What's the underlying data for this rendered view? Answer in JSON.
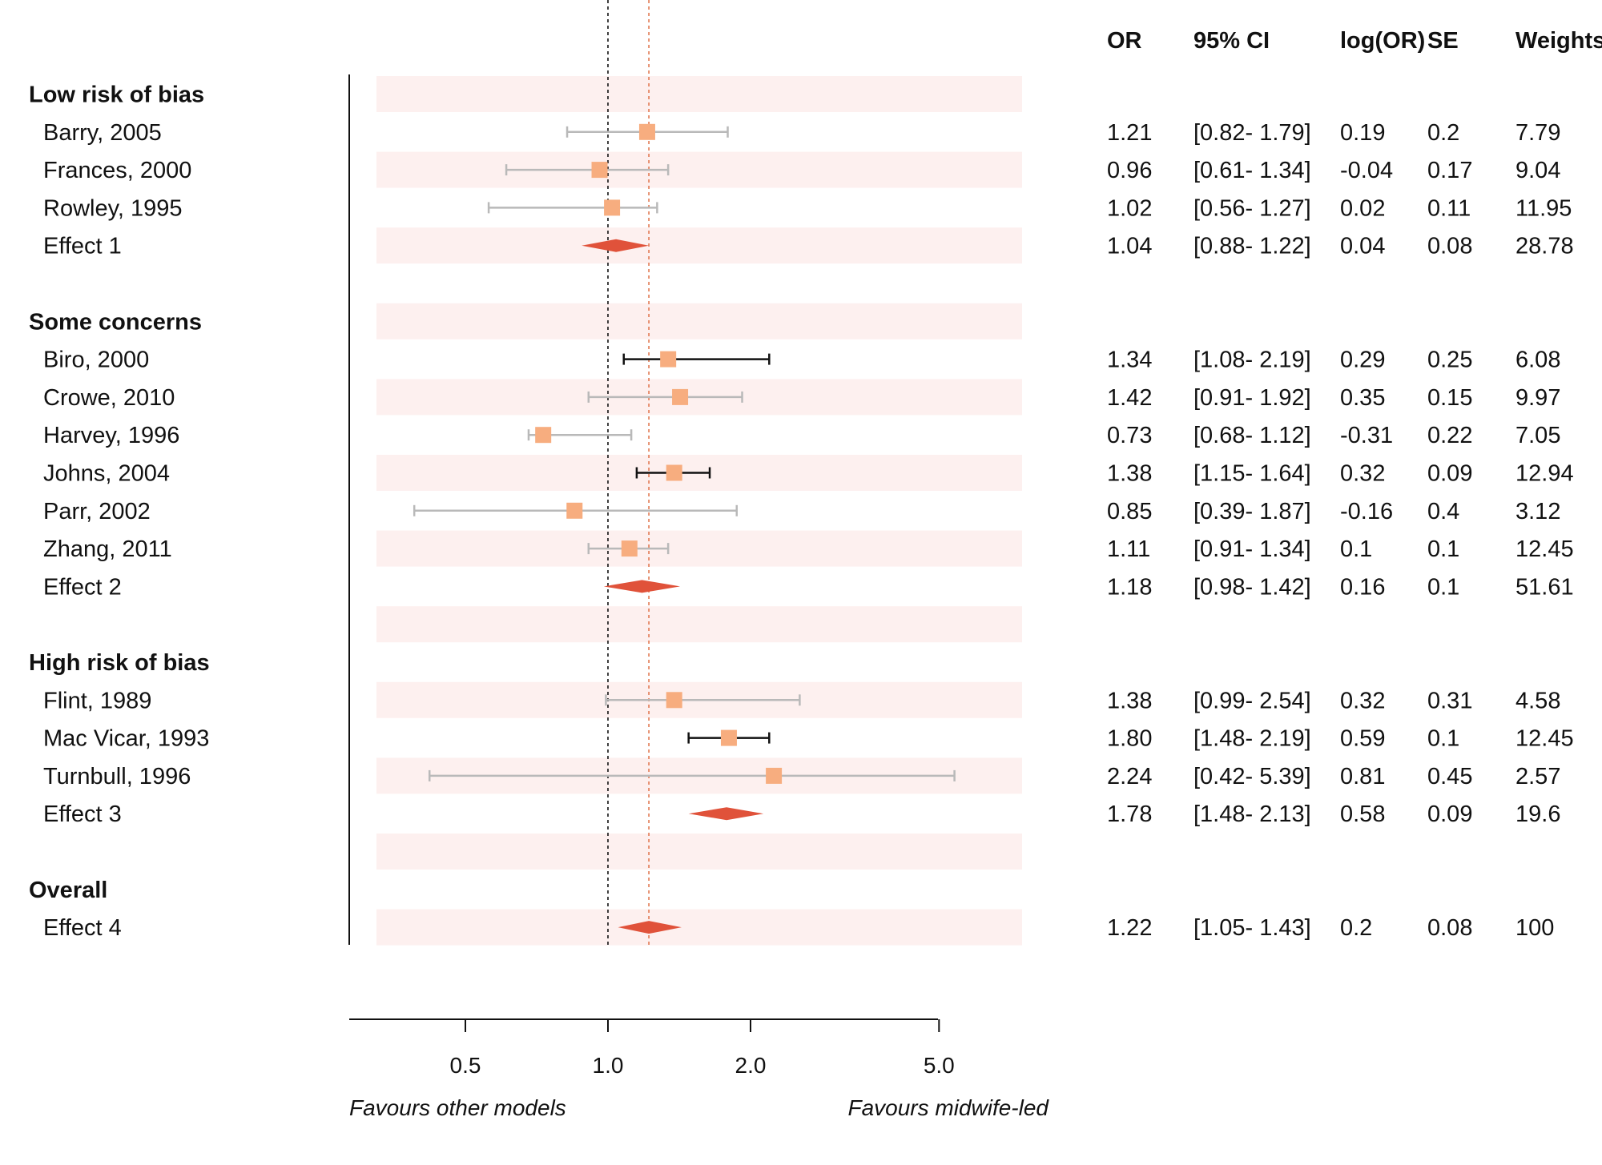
{
  "chart_data": {
    "type": "forest",
    "xscale": "log",
    "x_ticks": [
      0.5,
      1.0,
      2.0,
      5.0
    ],
    "x_tick_labels": [
      "0.5",
      "1.0",
      "2.0",
      "5.0"
    ],
    "xlim": [
      0.3,
      8.0
    ],
    "reference_line": 1.0,
    "overall_line": 1.22,
    "footer_left": "Favours other models",
    "footer_right": "Favours midwife-led",
    "columns": [
      "OR",
      "95% CI",
      "log(OR)",
      "SE",
      "Weights"
    ],
    "colors": {
      "box": "#f7ad7f",
      "diamond": "#e0523a",
      "band": "#fdf0ef",
      "ci_gray": "#b9b9b9",
      "ci_black": "#111111",
      "overall_line": "#e0764e"
    },
    "groups": [
      {
        "name": "Low risk of bias",
        "studies": [
          {
            "label": "Barry, 2005",
            "or": 1.21,
            "lo": 0.82,
            "hi": 1.79,
            "ci_text": "[0.82- 1.79]",
            "or_text": "1.21",
            "logor": "0.19",
            "se": "0.2",
            "weight": "7.79",
            "ci_color": "gray"
          },
          {
            "label": "Frances, 2000",
            "or": 0.96,
            "lo": 0.61,
            "hi": 1.34,
            "ci_text": "[0.61- 1.34]",
            "or_text": "0.96",
            "logor": "-0.04",
            "se": "0.17",
            "weight": "9.04",
            "ci_color": "gray"
          },
          {
            "label": "Rowley, 1995",
            "or": 1.02,
            "lo": 0.56,
            "hi": 1.27,
            "ci_text": "[0.56- 1.27]",
            "or_text": "1.02",
            "logor": "0.02",
            "se": "0.11",
            "weight": "11.95",
            "ci_color": "gray"
          }
        ],
        "effect": {
          "label": "Effect 1",
          "or": 1.04,
          "lo": 0.88,
          "hi": 1.22,
          "ci_text": "[0.88- 1.22]",
          "or_text": "1.04",
          "logor": "0.04",
          "se": "0.08",
          "weight": "28.78"
        }
      },
      {
        "name": "Some concerns",
        "studies": [
          {
            "label": "Biro, 2000",
            "or": 1.34,
            "lo": 1.08,
            "hi": 2.19,
            "ci_text": "[1.08- 2.19]",
            "or_text": "1.34",
            "logor": "0.29",
            "se": "0.25",
            "weight": "6.08",
            "ci_color": "black"
          },
          {
            "label": "Crowe, 2010",
            "or": 1.42,
            "lo": 0.91,
            "hi": 1.92,
            "ci_text": "[0.91- 1.92]",
            "or_text": "1.42",
            "logor": "0.35",
            "se": "0.15",
            "weight": "9.97",
            "ci_color": "gray"
          },
          {
            "label": "Harvey, 1996",
            "or": 0.73,
            "lo": 0.68,
            "hi": 1.12,
            "ci_text": "[0.68- 1.12]",
            "or_text": "0.73",
            "logor": "-0.31",
            "se": "0.22",
            "weight": "7.05",
            "ci_color": "gray"
          },
          {
            "label": "Johns, 2004",
            "or": 1.38,
            "lo": 1.15,
            "hi": 1.64,
            "ci_text": "[1.15- 1.64]",
            "or_text": "1.38",
            "logor": "0.32",
            "se": "0.09",
            "weight": "12.94",
            "ci_color": "black"
          },
          {
            "label": "Parr, 2002",
            "or": 0.85,
            "lo": 0.39,
            "hi": 1.87,
            "ci_text": "[0.39- 1.87]",
            "or_text": "0.85",
            "logor": "-0.16",
            "se": "0.4",
            "weight": "3.12",
            "ci_color": "gray"
          },
          {
            "label": "Zhang, 2011",
            "or": 1.11,
            "lo": 0.91,
            "hi": 1.34,
            "ci_text": "[0.91- 1.34]",
            "or_text": "1.11",
            "logor": "0.1",
            "se": "0.1",
            "weight": "12.45",
            "ci_color": "gray"
          }
        ],
        "effect": {
          "label": "Effect 2",
          "or": 1.18,
          "lo": 0.98,
          "hi": 1.42,
          "ci_text": "[0.98- 1.42]",
          "or_text": "1.18",
          "logor": "0.16",
          "se": "0.1",
          "weight": "51.61"
        }
      },
      {
        "name": "High risk of bias",
        "studies": [
          {
            "label": "Flint, 1989",
            "or": 1.38,
            "lo": 0.99,
            "hi": 2.54,
            "ci_text": "[0.99- 2.54]",
            "or_text": "1.38",
            "logor": "0.32",
            "se": "0.31",
            "weight": "4.58",
            "ci_color": "gray"
          },
          {
            "label": "Mac Vicar, 1993",
            "or": 1.8,
            "lo": 1.48,
            "hi": 2.19,
            "ci_text": "[1.48- 2.19]",
            "or_text": "1.80",
            "logor": "0.59",
            "se": "0.1",
            "weight": "12.45",
            "ci_color": "black"
          },
          {
            "label": "Turnbull, 1996",
            "or": 2.24,
            "lo": 0.42,
            "hi": 5.39,
            "ci_text": "[0.42- 5.39]",
            "or_text": "2.24",
            "logor": "0.81",
            "se": "0.45",
            "weight": "2.57",
            "ci_color": "gray"
          }
        ],
        "effect": {
          "label": "Effect 3",
          "or": 1.78,
          "lo": 1.48,
          "hi": 2.13,
          "ci_text": "[1.48- 2.13]",
          "or_text": "1.78",
          "logor": "0.58",
          "se": "0.09",
          "weight": "19.6"
        }
      },
      {
        "name": "Overall",
        "studies": [],
        "effect": {
          "label": "Effect 4",
          "or": 1.22,
          "lo": 1.05,
          "hi": 1.43,
          "ci_text": "[1.05- 1.43]",
          "or_text": "1.22",
          "logor": "0.2",
          "se": "0.08",
          "weight": "100"
        }
      }
    ]
  }
}
